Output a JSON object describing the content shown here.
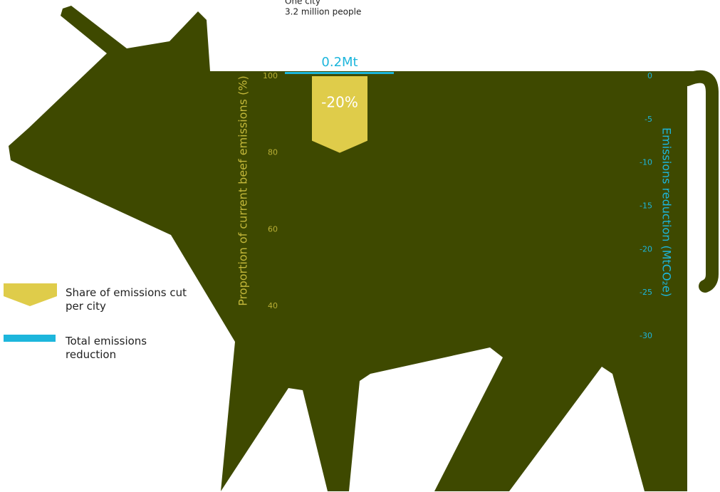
{
  "chart_data": {
    "type": "bar",
    "categories": [
      "One city"
    ],
    "annotations": [
      "3.2 million people"
    ],
    "series": [
      {
        "name": "Share of emissions cut per city",
        "color": "#dfcc4a",
        "values": [
          -20
        ],
        "value_labels": [
          "-20%"
        ],
        "axis": "y"
      },
      {
        "name": "Total emissions reduction",
        "color": "#1db6dc",
        "values": [
          -0.2
        ],
        "value_labels": [
          "0.2Mt"
        ],
        "axis": "y2"
      }
    ],
    "ylabel": "Proportion of current beef emissions (%)",
    "ylim": [
      40,
      100
    ],
    "yticks": [
      100,
      80,
      60,
      40
    ],
    "y2label": "Emissions reduction (MtCO₂e)",
    "y2lim": [
      -30,
      0
    ],
    "y2ticks": [
      0,
      -5,
      -10,
      -15,
      -20,
      -25,
      -30
    ]
  }
}
